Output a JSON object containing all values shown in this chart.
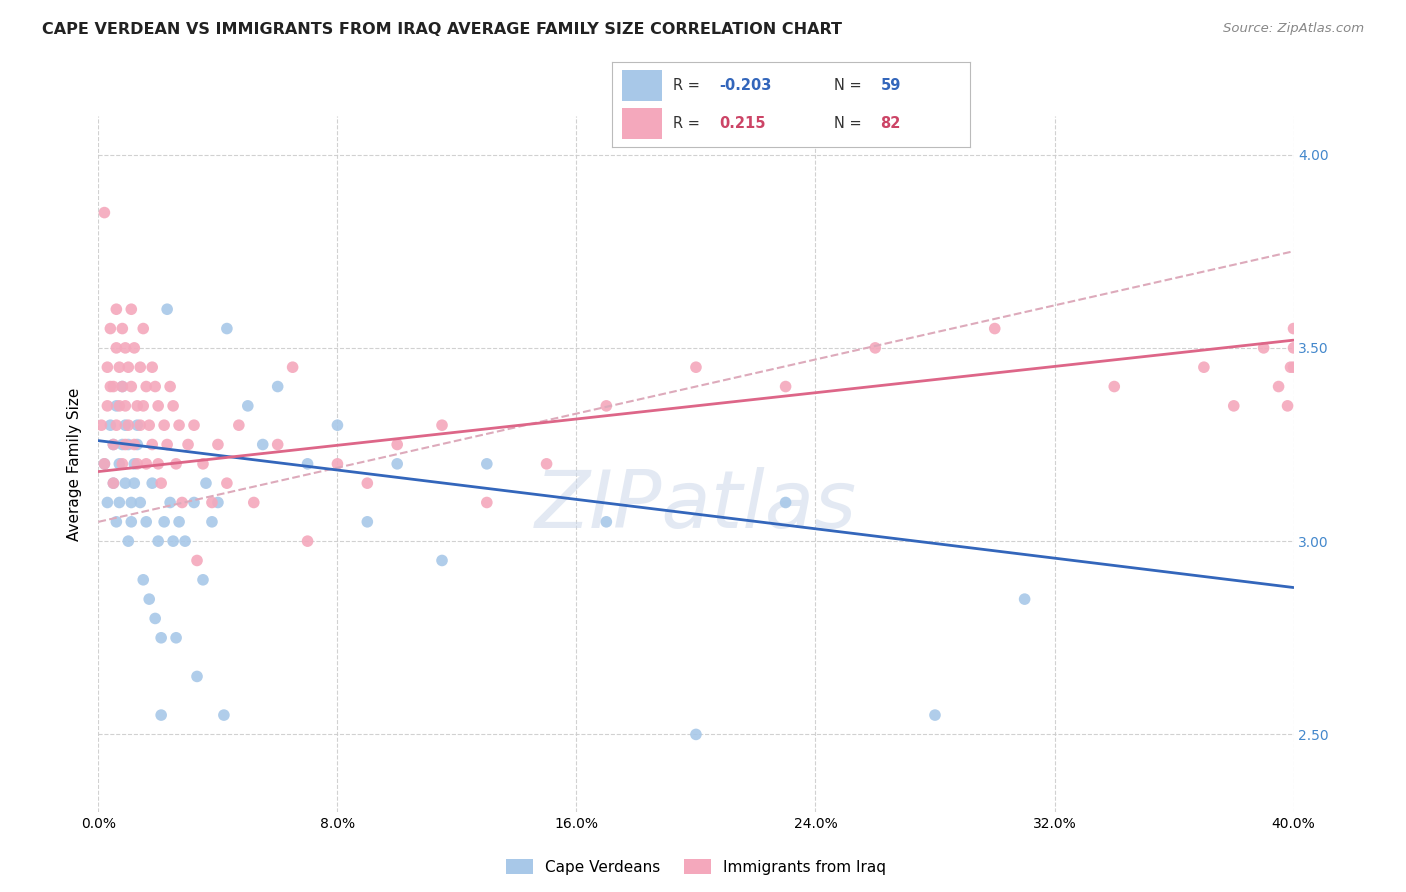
{
  "title": "CAPE VERDEAN VS IMMIGRANTS FROM IRAQ AVERAGE FAMILY SIZE CORRELATION CHART",
  "source": "Source: ZipAtlas.com",
  "ylabel": "Average Family Size",
  "right_yticks": [
    2.5,
    3.0,
    3.5,
    4.0
  ],
  "legend": {
    "blue_label": "Cape Verdeans",
    "pink_label": "Immigrants from Iraq",
    "blue_R": "-0.203",
    "blue_N": "59",
    "pink_R": "0.215",
    "pink_N": "82"
  },
  "blue_color": "#a8c8e8",
  "pink_color": "#f4a8bc",
  "blue_line_color": "#3366bb",
  "pink_line_color": "#dd6688",
  "pink_dash_color": "#ddaabb",
  "watermark": "ZIPatlas",
  "blue_scatter_x": [
    0.2,
    0.3,
    0.4,
    0.5,
    0.5,
    0.6,
    0.6,
    0.7,
    0.7,
    0.8,
    0.8,
    0.9,
    0.9,
    1.0,
    1.0,
    1.1,
    1.1,
    1.2,
    1.2,
    1.3,
    1.3,
    1.4,
    1.5,
    1.6,
    1.7,
    1.8,
    1.9,
    2.0,
    2.1,
    2.2,
    2.3,
    2.4,
    2.5,
    2.7,
    2.9,
    3.2,
    3.5,
    3.8,
    4.0,
    4.3,
    5.0,
    5.5,
    6.0,
    7.0,
    8.0,
    9.0,
    10.0,
    11.5,
    13.0,
    17.0,
    20.0,
    23.0,
    28.0,
    31.0,
    2.1,
    2.6,
    3.3,
    4.2,
    3.6
  ],
  "blue_scatter_y": [
    3.2,
    3.1,
    3.3,
    3.25,
    3.15,
    3.05,
    3.35,
    3.2,
    3.1,
    3.25,
    3.4,
    3.3,
    3.15,
    3.0,
    3.25,
    3.1,
    3.05,
    3.2,
    3.15,
    3.3,
    3.25,
    3.1,
    2.9,
    3.05,
    2.85,
    3.15,
    2.8,
    3.0,
    2.75,
    3.05,
    3.6,
    3.1,
    3.0,
    3.05,
    3.0,
    3.1,
    2.9,
    3.05,
    3.1,
    3.55,
    3.35,
    3.25,
    3.4,
    3.2,
    3.3,
    3.05,
    3.2,
    2.95,
    3.2,
    3.05,
    2.5,
    3.1,
    2.55,
    2.85,
    2.55,
    2.75,
    2.65,
    2.55,
    3.15
  ],
  "pink_scatter_x": [
    0.1,
    0.2,
    0.2,
    0.3,
    0.3,
    0.4,
    0.4,
    0.5,
    0.5,
    0.5,
    0.6,
    0.6,
    0.6,
    0.7,
    0.7,
    0.8,
    0.8,
    0.8,
    0.9,
    0.9,
    0.9,
    1.0,
    1.0,
    1.1,
    1.1,
    1.2,
    1.2,
    1.3,
    1.3,
    1.4,
    1.4,
    1.5,
    1.5,
    1.6,
    1.6,
    1.7,
    1.8,
    1.8,
    1.9,
    2.0,
    2.0,
    2.1,
    2.2,
    2.3,
    2.4,
    2.5,
    2.6,
    2.7,
    2.8,
    3.0,
    3.2,
    3.3,
    3.5,
    3.8,
    4.0,
    4.3,
    4.7,
    5.2,
    6.0,
    6.5,
    7.0,
    8.0,
    9.0,
    10.0,
    11.5,
    13.0,
    15.0,
    17.0,
    20.0,
    23.0,
    26.0,
    30.0,
    34.0,
    37.0,
    38.0,
    39.0,
    39.5,
    39.8,
    39.9,
    40.0,
    40.0,
    40.0
  ],
  "pink_scatter_y": [
    3.3,
    3.85,
    3.2,
    3.35,
    3.45,
    3.4,
    3.55,
    3.25,
    3.4,
    3.15,
    3.6,
    3.5,
    3.3,
    3.45,
    3.35,
    3.4,
    3.55,
    3.2,
    3.5,
    3.35,
    3.25,
    3.45,
    3.3,
    3.6,
    3.4,
    3.5,
    3.25,
    3.35,
    3.2,
    3.45,
    3.3,
    3.55,
    3.35,
    3.2,
    3.4,
    3.3,
    3.45,
    3.25,
    3.4,
    3.35,
    3.2,
    3.15,
    3.3,
    3.25,
    3.4,
    3.35,
    3.2,
    3.3,
    3.1,
    3.25,
    3.3,
    2.95,
    3.2,
    3.1,
    3.25,
    3.15,
    3.3,
    3.1,
    3.25,
    3.45,
    3.0,
    3.2,
    3.15,
    3.25,
    3.3,
    3.1,
    3.2,
    3.35,
    3.45,
    3.4,
    3.5,
    3.55,
    3.4,
    3.45,
    3.35,
    3.5,
    3.4,
    3.35,
    3.45,
    3.5,
    3.55,
    3.45
  ],
  "xlim": [
    0.0,
    40.0
  ],
  "ylim": [
    2.3,
    4.1
  ],
  "xticks": [
    0.0,
    8.0,
    16.0,
    24.0,
    32.0,
    40.0
  ],
  "xticklabels": [
    "0.0%",
    "8.0%",
    "16.0%",
    "24.0%",
    "32.0%",
    "40.0%"
  ],
  "bg_color": "#ffffff",
  "grid_color": "#cccccc",
  "blue_trend_x": [
    0.0,
    40.0
  ],
  "blue_trend_y": [
    3.26,
    2.88
  ],
  "pink_trend_x": [
    0.0,
    40.0
  ],
  "pink_trend_y": [
    3.18,
    3.52
  ],
  "pink_dash_trend_x": [
    0.0,
    40.0
  ],
  "pink_dash_trend_y": [
    3.05,
    3.75
  ]
}
